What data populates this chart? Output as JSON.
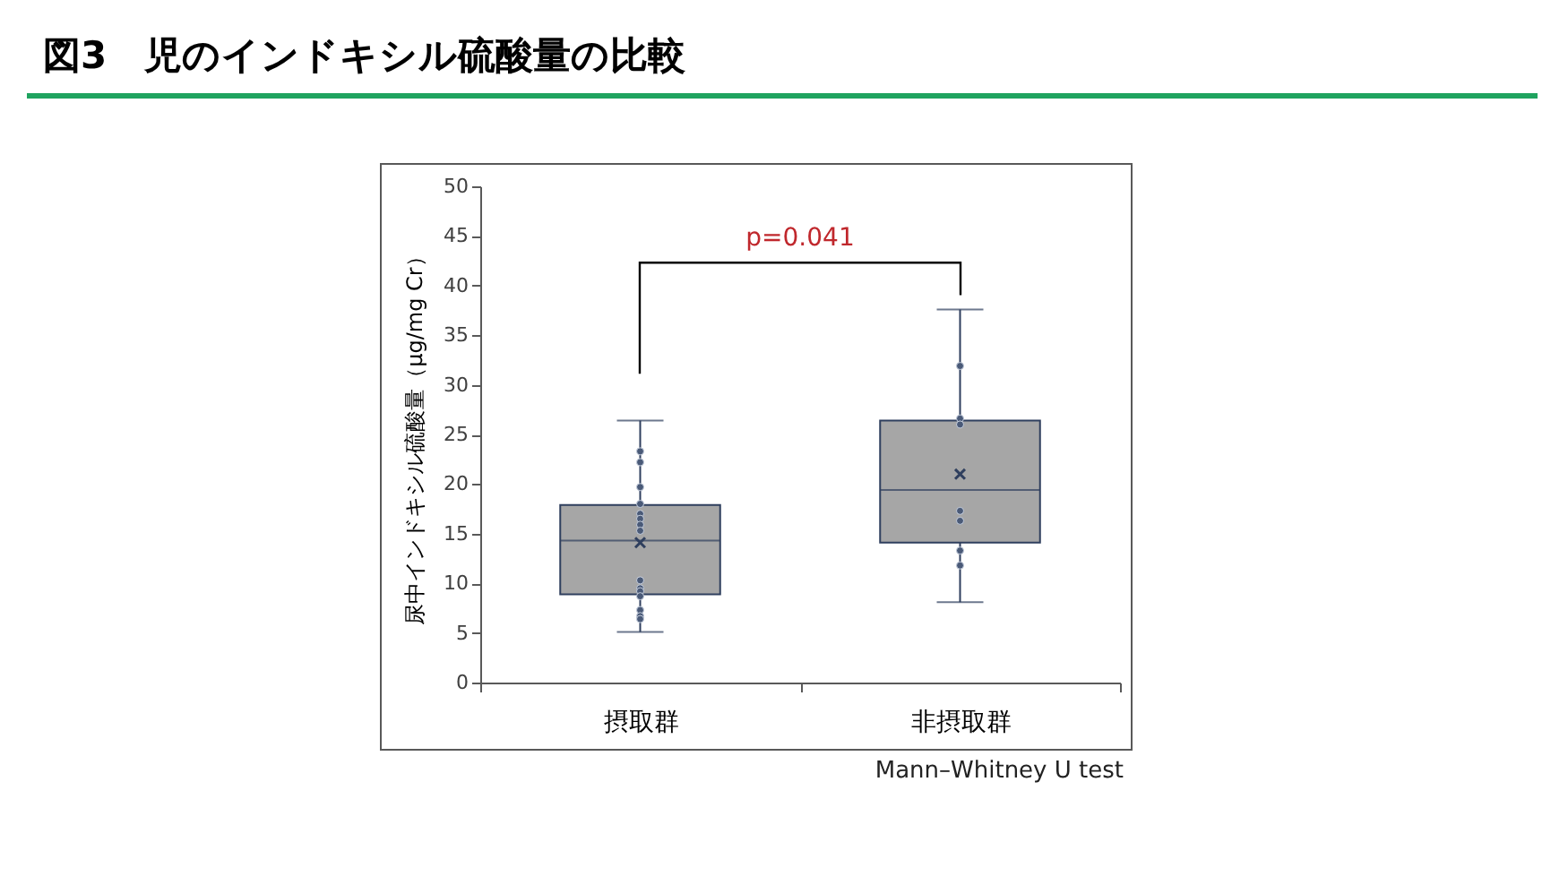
{
  "chart_data": {
    "type": "box",
    "title": "図3　児のインドキシル硫酸量の比較",
    "ylabel": "尿中インドキシル硫酸量（μg/mg Cr）",
    "categories": [
      "摂取群",
      "非摂取群"
    ],
    "ylim": [
      0,
      50
    ],
    "yticks": [
      0,
      5,
      10,
      15,
      20,
      25,
      30,
      35,
      40,
      45,
      50
    ],
    "series": [
      {
        "color": "#a6a6a6",
        "boxes": [
          {
            "low": 5.1,
            "q1": 8.9,
            "median": 14.3,
            "q3": 17.9,
            "high": 26.4,
            "mean": 14.1
          },
          {
            "low": 8.1,
            "q1": 14.1,
            "median": 19.4,
            "q3": 26.4,
            "high": 37.6,
            "mean": 21.0
          }
        ]
      },
      {
        "type": "scatter",
        "color": "#4a5a78",
        "marker": "circle",
        "x": [
          "摂取群",
          "摂取群",
          "摂取群",
          "摂取群",
          "摂取群",
          "摂取群",
          "摂取群",
          "摂取群",
          "摂取群",
          "摂取群",
          "摂取群",
          "摂取群",
          "摂取群",
          "摂取群",
          "摂取群",
          "非摂取群",
          "非摂取群",
          "非摂取群",
          "非摂取群",
          "非摂取群",
          "非摂取群",
          "非摂取群"
        ],
        "values": [
          23.3,
          22.2,
          19.7,
          18.0,
          17.0,
          16.5,
          15.9,
          15.3,
          10.3,
          9.5,
          9.2,
          8.7,
          7.3,
          6.7,
          6.4,
          31.9,
          26.6,
          26.0,
          17.3,
          16.3,
          13.3,
          11.8
        ]
      }
    ],
    "annotations": [
      "p=0.041",
      "Mann–Whitney U test"
    ]
  }
}
